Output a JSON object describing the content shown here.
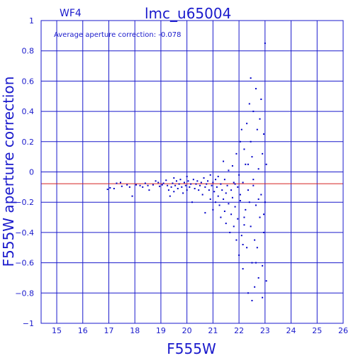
{
  "chart_data": {
    "type": "scatter",
    "panel_label": "WF4",
    "title": "lmc_u65004",
    "annotation": "Average aperture correction: -0.078",
    "xlabel": "F555W",
    "ylabel": "F555W aperture correction",
    "xlim": [
      14.4,
      26
    ],
    "ylim": [
      -1,
      1
    ],
    "xticks": [
      15,
      16,
      17,
      18,
      19,
      20,
      21,
      22,
      23,
      24,
      25,
      26
    ],
    "yticks": [
      -1,
      -0.8,
      -0.6,
      -0.4,
      -0.2,
      0,
      0.2,
      0.4,
      0.6,
      0.8,
      1
    ],
    "ytick_labels": [
      "−1",
      "−0.8",
      "−0.6",
      "−0.4",
      "−0.2",
      "0",
      "0.2",
      "0.4",
      "0.6",
      "0.8",
      "1"
    ],
    "grid": true,
    "reference_line": {
      "y": -0.078,
      "color": "#d42020"
    },
    "colors": {
      "axes": "#1a1acc",
      "points": "#0000c8",
      "text": "#1a1acc"
    },
    "points": [
      [
        16.95,
        -0.115
      ],
      [
        17.05,
        -0.105
      ],
      [
        17.2,
        -0.11
      ],
      [
        17.3,
        -0.075
      ],
      [
        17.45,
        -0.07
      ],
      [
        17.5,
        -0.095
      ],
      [
        17.7,
        -0.085
      ],
      [
        17.8,
        -0.1
      ],
      [
        17.9,
        -0.16
      ],
      [
        18.05,
        -0.085
      ],
      [
        18.2,
        -0.09
      ],
      [
        18.3,
        -0.1
      ],
      [
        18.4,
        -0.075
      ],
      [
        18.5,
        -0.09
      ],
      [
        18.55,
        -0.12
      ],
      [
        18.7,
        -0.085
      ],
      [
        18.8,
        -0.06
      ],
      [
        18.9,
        -0.07
      ],
      [
        18.95,
        -0.095
      ],
      [
        19.05,
        -0.085
      ],
      [
        19.1,
        -0.075
      ],
      [
        19.2,
        -0.055
      ],
      [
        19.25,
        -0.09
      ],
      [
        19.3,
        -0.12
      ],
      [
        19.35,
        -0.16
      ],
      [
        19.4,
        -0.1
      ],
      [
        19.45,
        -0.075
      ],
      [
        19.5,
        -0.04
      ],
      [
        19.5,
        -0.13
      ],
      [
        19.55,
        -0.09
      ],
      [
        19.6,
        -0.06
      ],
      [
        19.65,
        -0.11
      ],
      [
        19.7,
        -0.08
      ],
      [
        19.75,
        -0.05
      ],
      [
        19.8,
        -0.1
      ],
      [
        19.85,
        -0.14
      ],
      [
        19.9,
        -0.07
      ],
      [
        19.95,
        -0.09
      ],
      [
        20.0,
        -0.03
      ],
      [
        20.0,
        -0.12
      ],
      [
        20.05,
        -0.06
      ],
      [
        20.1,
        -0.1
      ],
      [
        20.15,
        -0.08
      ],
      [
        20.2,
        -0.2
      ],
      [
        20.25,
        -0.05
      ],
      [
        20.3,
        -0.11
      ],
      [
        20.35,
        -0.08
      ],
      [
        20.4,
        -0.06
      ],
      [
        20.45,
        -0.12
      ],
      [
        20.5,
        -0.09
      ],
      [
        20.55,
        -0.07
      ],
      [
        20.6,
        -0.15
      ],
      [
        20.65,
        -0.04
      ],
      [
        20.7,
        -0.1
      ],
      [
        20.7,
        -0.27
      ],
      [
        20.75,
        -0.08
      ],
      [
        20.8,
        -0.06
      ],
      [
        20.85,
        -0.12
      ],
      [
        20.9,
        -0.02
      ],
      [
        20.9,
        -0.18
      ],
      [
        20.95,
        -0.09
      ],
      [
        21.0,
        -0.07
      ],
      [
        21.0,
        -0.25
      ],
      [
        21.05,
        -0.13
      ],
      [
        21.1,
        -0.05
      ],
      [
        21.1,
        -0.2
      ],
      [
        21.15,
        -0.1
      ],
      [
        21.2,
        -0.03
      ],
      [
        21.2,
        -0.16
      ],
      [
        21.25,
        -0.22
      ],
      [
        21.3,
        -0.08
      ],
      [
        21.3,
        -0.3
      ],
      [
        21.35,
        -0.12
      ],
      [
        21.4,
        0.07
      ],
      [
        21.4,
        -0.18
      ],
      [
        21.45,
        -0.05
      ],
      [
        21.45,
        -0.26
      ],
      [
        21.5,
        -0.14
      ],
      [
        21.5,
        -0.34
      ],
      [
        21.55,
        -0.09
      ],
      [
        21.6,
        0.01
      ],
      [
        21.6,
        -0.21
      ],
      [
        21.65,
        -0.4
      ],
      [
        21.7,
        -0.12
      ],
      [
        21.7,
        -0.28
      ],
      [
        21.75,
        0.04
      ],
      [
        21.75,
        -0.17
      ],
      [
        21.8,
        -0.07
      ],
      [
        21.8,
        -0.36
      ],
      [
        21.85,
        -0.23
      ],
      [
        21.9,
        0.12
      ],
      [
        21.9,
        -0.45
      ],
      [
        21.95,
        -0.1
      ],
      [
        21.95,
        -0.31
      ],
      [
        22.0,
        -0.02
      ],
      [
        22.0,
        -0.55
      ],
      [
        22.05,
        0.2
      ],
      [
        22.05,
        -0.19
      ],
      [
        22.1,
        0.28
      ],
      [
        22.1,
        -0.42
      ],
      [
        22.15,
        -0.07
      ],
      [
        22.15,
        -0.64
      ],
      [
        22.2,
        0.15
      ],
      [
        22.2,
        -0.3
      ],
      [
        22.25,
        0.05
      ],
      [
        22.25,
        -0.25
      ],
      [
        22.3,
        0.32
      ],
      [
        22.3,
        -0.5
      ],
      [
        22.35,
        -0.12
      ],
      [
        22.35,
        -0.8
      ],
      [
        22.4,
        0.45
      ],
      [
        22.4,
        -0.2
      ],
      [
        22.45,
        0.62
      ],
      [
        22.45,
        -0.36
      ],
      [
        22.5,
        0.1
      ],
      [
        22.5,
        -0.6
      ],
      [
        22.55,
        0.4
      ],
      [
        22.55,
        -0.09
      ],
      [
        22.6,
        -0.45
      ],
      [
        22.6,
        -0.76
      ],
      [
        22.65,
        0.55
      ],
      [
        22.65,
        -0.22
      ],
      [
        22.7,
        0.28
      ],
      [
        22.7,
        -0.5
      ],
      [
        22.75,
        0.02
      ],
      [
        22.75,
        -0.7
      ],
      [
        22.8,
        0.35
      ],
      [
        22.8,
        -0.3
      ],
      [
        22.85,
        0.48
      ],
      [
        22.85,
        -0.15
      ],
      [
        22.9,
        0.12
      ],
      [
        22.9,
        -0.62
      ],
      [
        22.95,
        0.25
      ],
      [
        22.95,
        -0.4
      ],
      [
        23.0,
        0.85
      ],
      [
        23.0,
        -0.2
      ],
      [
        23.05,
        0.05
      ],
      [
        23.05,
        -0.72
      ],
      [
        22.05,
        -0.15
      ],
      [
        22.55,
        -0.05
      ],
      [
        22.2,
        -0.35
      ],
      [
        22.45,
        0.2
      ],
      [
        22.65,
        -0.6
      ],
      [
        22.35,
        0.05
      ],
      [
        21.85,
        -0.08
      ],
      [
        22.75,
        -0.18
      ],
      [
        22.95,
        -0.28
      ],
      [
        22.15,
        -0.48
      ],
      [
        22.5,
        -0.85
      ],
      [
        22.9,
        -0.83
      ]
    ]
  }
}
